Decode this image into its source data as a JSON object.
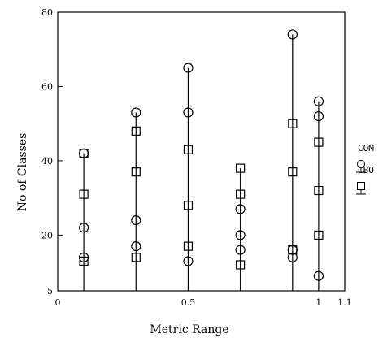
{
  "chart_data": {
    "type": "scatter",
    "xlabel": "Metric Range",
    "ylabel": "No of Classes",
    "xlim": [
      0,
      1.1
    ],
    "ylim": [
      5,
      80
    ],
    "xticks": [
      0,
      0.5,
      1,
      1.1
    ],
    "xtick_labels": [
      "0",
      "0.5",
      "1",
      "1.1"
    ],
    "yticks": [
      5,
      20,
      40,
      60,
      80
    ],
    "ytick_labels": [
      "5",
      "20",
      "40",
      "60",
      "80"
    ],
    "grid": false,
    "legend_position": "right",
    "vertical_lines": [
      {
        "x": 0.1,
        "ymax": 42
      },
      {
        "x": 0.3,
        "ymax": 53
      },
      {
        "x": 0.5,
        "ymax": 65
      },
      {
        "x": 0.7,
        "ymax": 38
      },
      {
        "x": 0.9,
        "ymax": 74
      },
      {
        "x": 1.0,
        "ymax": 56
      }
    ],
    "series": [
      {
        "name": "COM",
        "marker": "circle",
        "points": [
          [
            0.1,
            42
          ],
          [
            0.1,
            22
          ],
          [
            0.1,
            14
          ],
          [
            0.3,
            53
          ],
          [
            0.3,
            24
          ],
          [
            0.3,
            17
          ],
          [
            0.5,
            65
          ],
          [
            0.5,
            53
          ],
          [
            0.5,
            13
          ],
          [
            0.7,
            27
          ],
          [
            0.7,
            20
          ],
          [
            0.7,
            16
          ],
          [
            0.9,
            74
          ],
          [
            0.9,
            16
          ],
          [
            0.9,
            14
          ],
          [
            1.0,
            56
          ],
          [
            1.0,
            52
          ],
          [
            1.0,
            9
          ]
        ]
      },
      {
        "name": "CBO",
        "marker": "square",
        "points": [
          [
            0.1,
            42
          ],
          [
            0.1,
            31
          ],
          [
            0.1,
            13
          ],
          [
            0.3,
            48
          ],
          [
            0.3,
            37
          ],
          [
            0.3,
            14
          ],
          [
            0.5,
            43
          ],
          [
            0.5,
            28
          ],
          [
            0.5,
            17
          ],
          [
            0.7,
            38
          ],
          [
            0.7,
            31
          ],
          [
            0.7,
            12
          ],
          [
            0.9,
            50
          ],
          [
            0.9,
            37
          ],
          [
            0.9,
            16
          ],
          [
            1.0,
            45
          ],
          [
            1.0,
            32
          ],
          [
            1.0,
            20
          ]
        ]
      }
    ]
  }
}
